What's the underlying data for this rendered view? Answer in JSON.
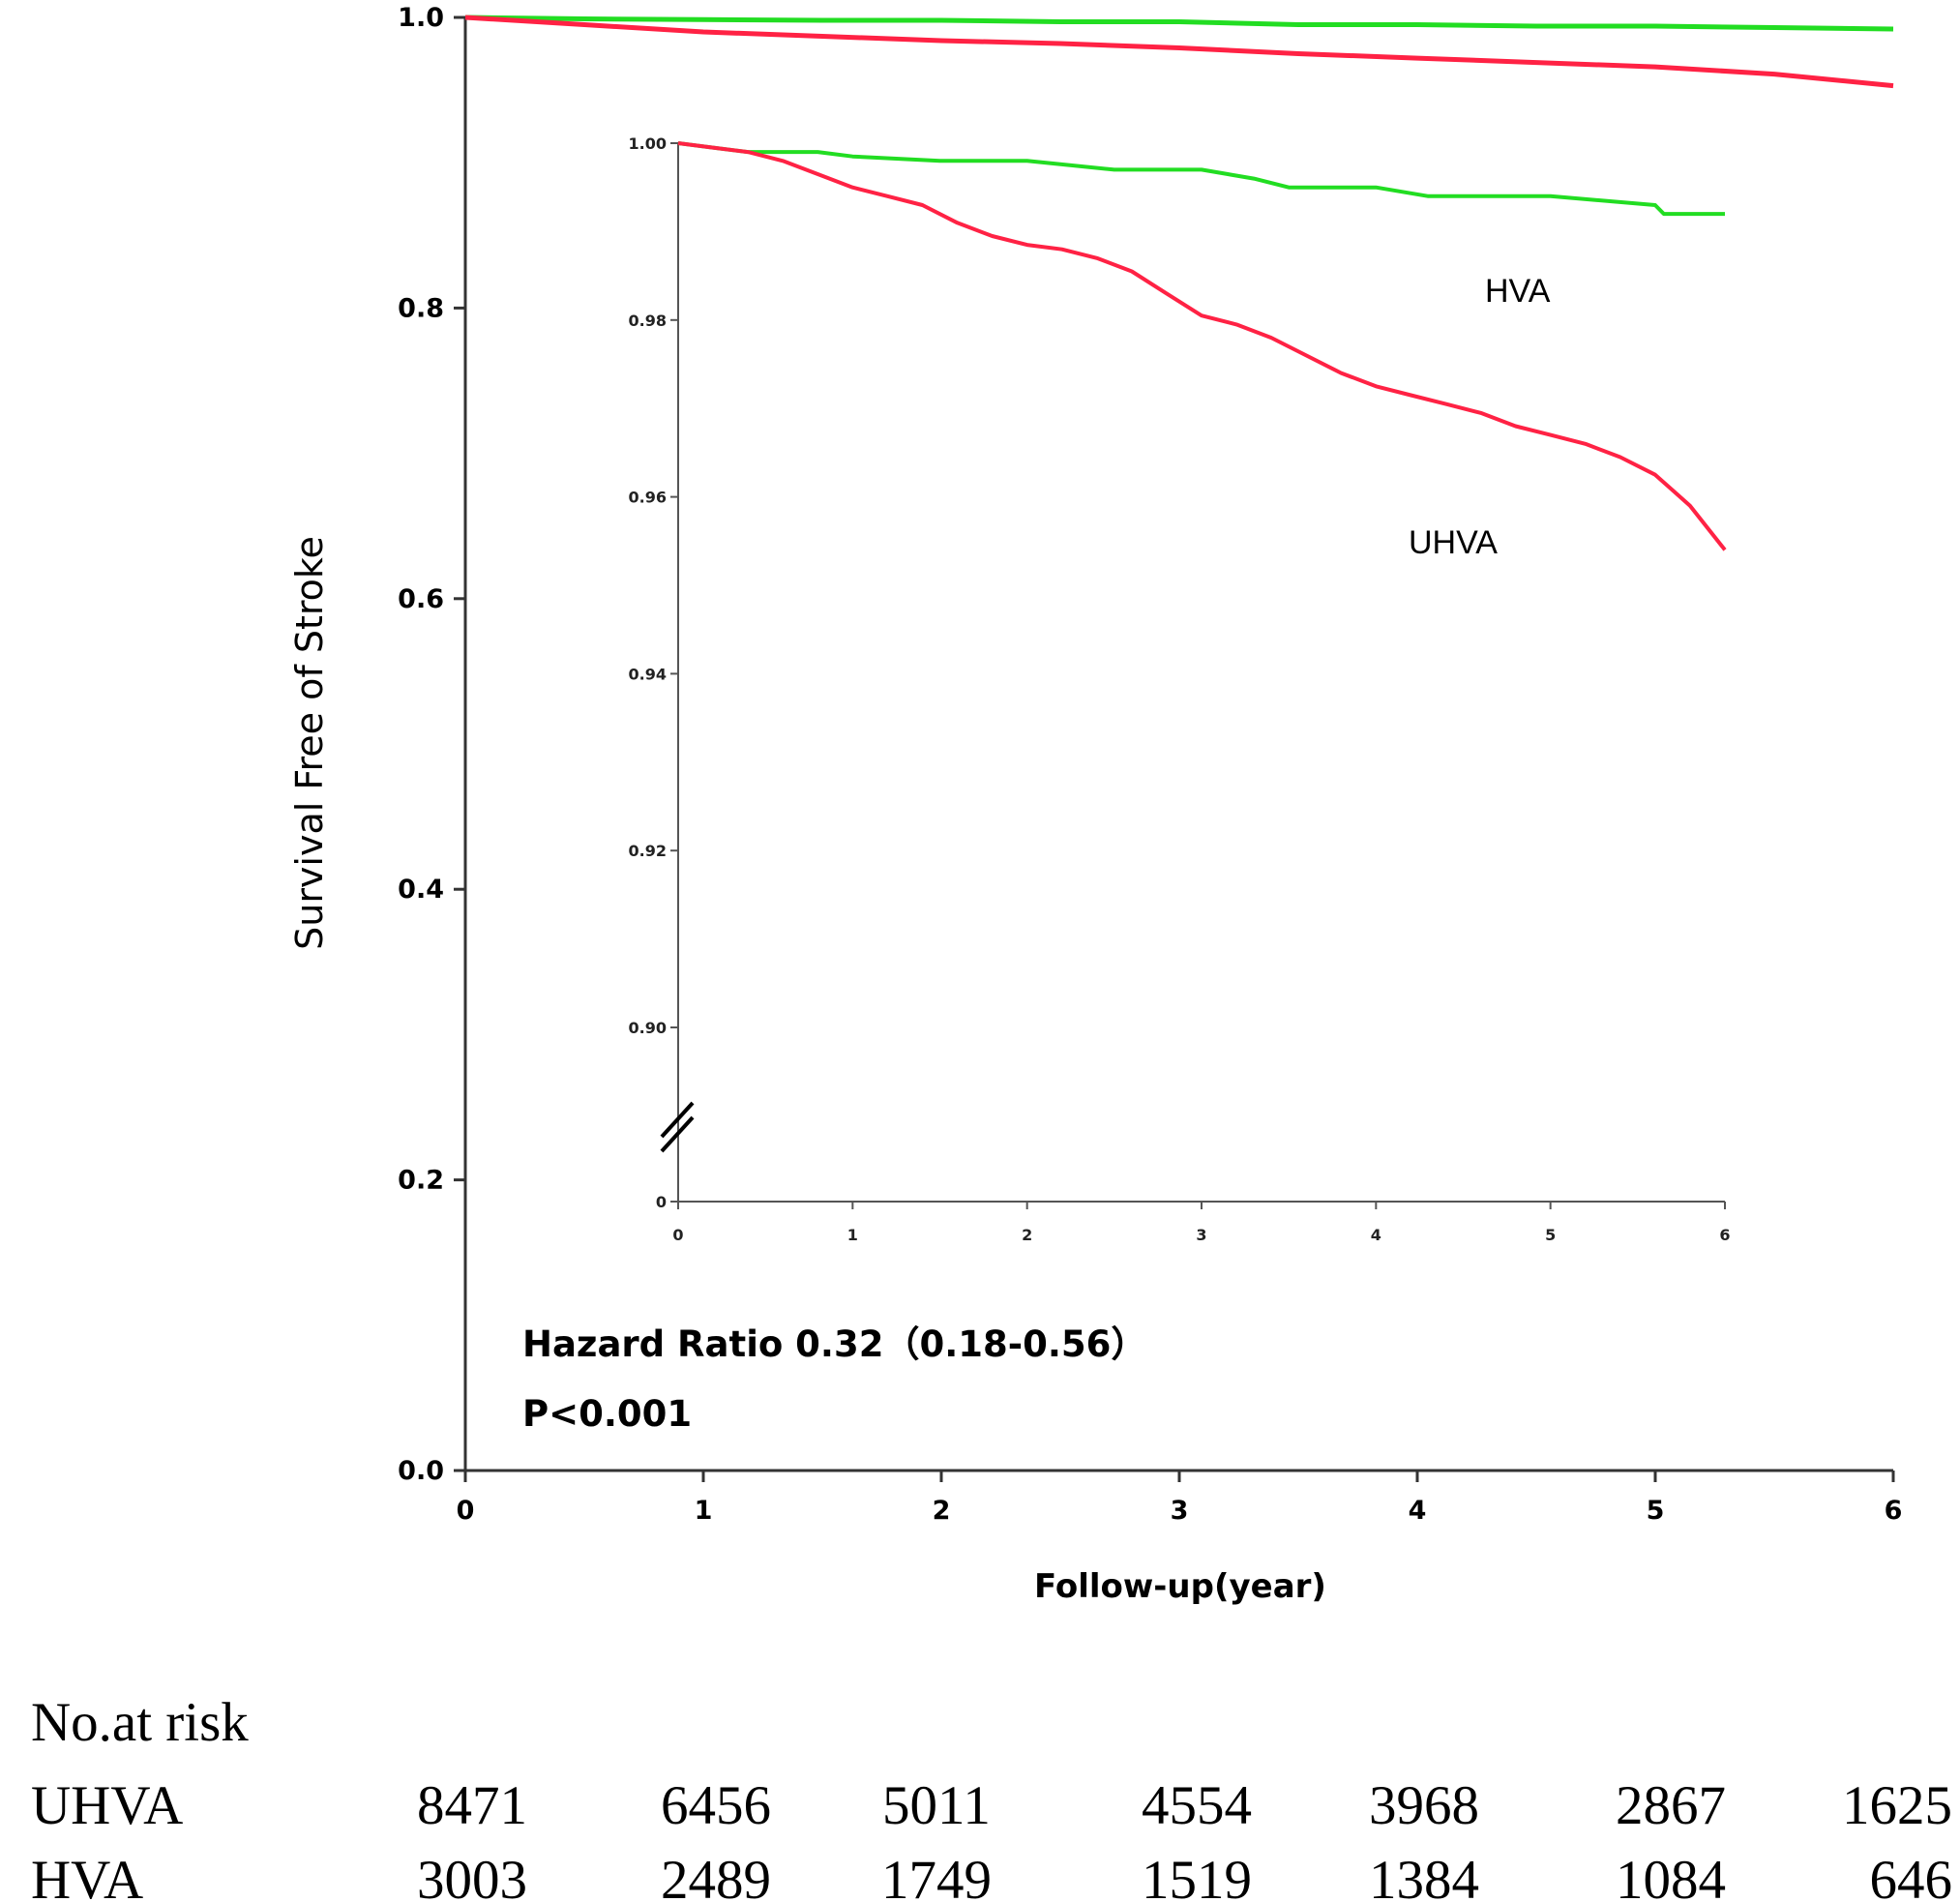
{
  "chart_data": [
    {
      "type": "line",
      "role": "main",
      "ylabel": "Survival Free of Stroke",
      "xlabel": "Follow-up(year)",
      "xlim": [
        0,
        6
      ],
      "ylim": [
        0.0,
        1.0
      ],
      "x_ticks": [
        "0",
        "1",
        "2",
        "3",
        "4",
        "5",
        "6"
      ],
      "y_ticks": [
        "0.0",
        "0.2",
        "0.4",
        "0.6",
        "0.8",
        "1.0"
      ],
      "annotations": [
        "Hazard Ratio 0.32（0.18-0.56）",
        "P<0.001"
      ],
      "series": [
        {
          "name": "HVA",
          "color": "#22dd22",
          "x": [
            0,
            0.5,
            1,
            1.5,
            2,
            2.5,
            3,
            3.5,
            4,
            4.5,
            5,
            5.5,
            6
          ],
          "y": [
            1.0,
            0.999,
            0.9985,
            0.998,
            0.998,
            0.997,
            0.997,
            0.995,
            0.995,
            0.994,
            0.994,
            0.993,
            0.992
          ]
        },
        {
          "name": "UHVA",
          "color": "#ff2244",
          "x": [
            0,
            0.5,
            1,
            1.5,
            2,
            2.5,
            3,
            3.5,
            4,
            4.5,
            5,
            5.5,
            6
          ],
          "y": [
            1.0,
            0.995,
            0.99,
            0.987,
            0.984,
            0.982,
            0.979,
            0.975,
            0.972,
            0.969,
            0.966,
            0.961,
            0.953
          ]
        }
      ]
    },
    {
      "type": "line",
      "role": "inset",
      "xlim": [
        0,
        6
      ],
      "ylim": [
        0.88,
        1.0
      ],
      "axis_break": true,
      "x_ticks": [
        "0",
        "1",
        "2",
        "3",
        "4",
        "5",
        "6"
      ],
      "y_ticks": [
        "0",
        "0.90",
        "0.92",
        "0.94",
        "0.96",
        "0.98",
        "1.00"
      ],
      "series": [
        {
          "name": "HVA",
          "color": "#22dd22",
          "x": [
            0,
            0.2,
            0.4,
            0.8,
            1.0,
            1.5,
            2.0,
            2.5,
            3.0,
            3.3,
            3.5,
            3.7,
            4.0,
            4.3,
            4.5,
            5.0,
            5.6,
            5.65,
            6.0
          ],
          "y": [
            1.0,
            0.9995,
            0.999,
            0.999,
            0.9985,
            0.998,
            0.998,
            0.997,
            0.997,
            0.996,
            0.995,
            0.995,
            0.995,
            0.994,
            0.994,
            0.994,
            0.993,
            0.992,
            0.992
          ]
        },
        {
          "name": "UHVA",
          "color": "#ff2244",
          "x": [
            0,
            0.2,
            0.4,
            0.6,
            0.8,
            1.0,
            1.2,
            1.4,
            1.6,
            1.8,
            2.0,
            2.2,
            2.4,
            2.6,
            2.8,
            3.0,
            3.2,
            3.4,
            3.6,
            3.8,
            4.0,
            4.2,
            4.4,
            4.6,
            4.8,
            5.0,
            5.2,
            5.4,
            5.6,
            5.8,
            6.0
          ],
          "y": [
            1.0,
            0.9995,
            0.999,
            0.998,
            0.9965,
            0.995,
            0.994,
            0.993,
            0.991,
            0.9895,
            0.9885,
            0.988,
            0.987,
            0.9855,
            0.983,
            0.9805,
            0.9795,
            0.978,
            0.976,
            0.974,
            0.9725,
            0.9715,
            0.9705,
            0.9695,
            0.968,
            0.967,
            0.966,
            0.9645,
            0.9625,
            0.959,
            0.954
          ]
        }
      ],
      "labels": [
        "HVA",
        "UHVA"
      ]
    }
  ],
  "risk_table": {
    "title": "No.at risk",
    "rows": [
      {
        "group": "UHVA",
        "values": [
          "8471",
          "6456",
          "5011",
          "4554",
          "3968",
          "2867",
          "1625"
        ]
      },
      {
        "group": "HVA",
        "values": [
          "3003",
          "2489",
          "1749",
          "1519",
          "1384",
          "1084",
          "646"
        ]
      }
    ]
  }
}
